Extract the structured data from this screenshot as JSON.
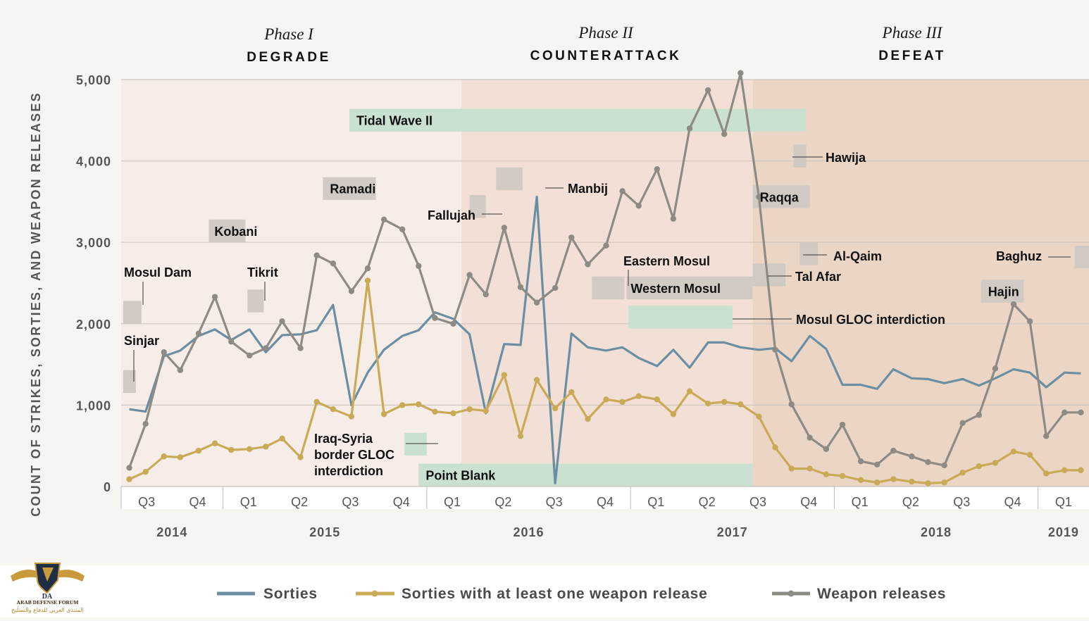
{
  "phases": [
    {
      "name": "Phase I",
      "title": "DEGRADE"
    },
    {
      "name": "Phase II",
      "title": "COUNTERATTACK"
    },
    {
      "name": "Phase III",
      "title": "DEFEAT"
    }
  ],
  "legend": [
    {
      "label": "Sorties",
      "color": "#6b8ea3"
    },
    {
      "label": "Sorties with at least one weapon release",
      "color": "#c9aa56"
    },
    {
      "label": "Weapon releases",
      "color": "#8e8a84"
    }
  ],
  "logo": {
    "line1": "ARAB DEFENSE FORUM",
    "line2": "المنتدى العربي للدفاع والتسليح",
    "initials": "DA"
  },
  "colors": {
    "sorties": "#6b8ea3",
    "sorties_weapon": "#c9aa56",
    "weapon_releases": "#8e8a84",
    "phase1_bg": "#f7ede8",
    "phase2_bg": "#f2e0d6",
    "phase3_bg": "#ebd6c6",
    "green_box": "#c7dfd0",
    "gray_box": "#d0c9c3"
  },
  "chart_data": {
    "type": "line",
    "ylabel": "COUNT OF STRIKES, SORTIES, AND WEAPON RELEASES",
    "ylim": [
      0,
      5000
    ],
    "yticks": [
      0,
      1000,
      2000,
      3000,
      4000,
      5000
    ],
    "ytick_labels": [
      "0",
      "1,000",
      "2,000",
      "3,000",
      "4,000",
      "5,000"
    ],
    "x_range": [
      2014.5,
      2019.25
    ],
    "quarter_labels": [
      {
        "label": "Q3",
        "x": 2014.625
      },
      {
        "label": "Q4",
        "x": 2014.875
      },
      {
        "label": "Q1",
        "x": 2015.125
      },
      {
        "label": "Q2",
        "x": 2015.375
      },
      {
        "label": "Q3",
        "x": 2015.625
      },
      {
        "label": "Q4",
        "x": 2015.875
      },
      {
        "label": "Q1",
        "x": 2016.125
      },
      {
        "label": "Q2",
        "x": 2016.375
      },
      {
        "label": "Q3",
        "x": 2016.625
      },
      {
        "label": "Q4",
        "x": 2016.875
      },
      {
        "label": "Q1",
        "x": 2017.125
      },
      {
        "label": "Q2",
        "x": 2017.375
      },
      {
        "label": "Q3",
        "x": 2017.625
      },
      {
        "label": "Q4",
        "x": 2017.875
      },
      {
        "label": "Q1",
        "x": 2018.125
      },
      {
        "label": "Q2",
        "x": 2018.375
      },
      {
        "label": "Q3",
        "x": 2018.625
      },
      {
        "label": "Q4",
        "x": 2018.875
      },
      {
        "label": "Q1",
        "x": 2019.125
      }
    ],
    "year_labels": [
      {
        "label": "2014",
        "x": 2014.75
      },
      {
        "label": "2015",
        "x": 2015.5
      },
      {
        "label": "2016",
        "x": 2016.5
      },
      {
        "label": "2017",
        "x": 2017.5
      },
      {
        "label": "2018",
        "x": 2018.5
      },
      {
        "label": "2019",
        "x": 2019.125
      }
    ],
    "phase_spans": [
      {
        "from": 2014.5,
        "to": 2016.17
      },
      {
        "from": 2016.17,
        "to": 2017.6
      },
      {
        "from": 2017.6,
        "to": 2019.25
      }
    ],
    "series": [
      {
        "name": "Sorties",
        "x": [
          2014.54,
          2014.62,
          2014.71,
          2014.79,
          2014.88,
          2014.96,
          2015.04,
          2015.13,
          2015.21,
          2015.29,
          2015.38,
          2015.46,
          2015.54,
          2015.63,
          2015.71,
          2015.79,
          2015.88,
          2015.96,
          2016.04,
          2016.13,
          2016.21,
          2016.29,
          2016.38,
          2016.46,
          2016.54,
          2016.63,
          2016.71,
          2016.79,
          2016.88,
          2016.96,
          2017.04,
          2017.13,
          2017.21,
          2017.29,
          2017.38,
          2017.46,
          2017.54,
          2017.63,
          2017.71,
          2017.79,
          2017.88,
          2017.96,
          2018.04,
          2018.13,
          2018.21,
          2018.29,
          2018.38,
          2018.46,
          2018.54,
          2018.63,
          2018.71,
          2018.79,
          2018.88,
          2018.96,
          2019.04,
          2019.13,
          2019.21
        ],
        "values": [
          950,
          920,
          1600,
          1670,
          1850,
          1930,
          1800,
          1930,
          1650,
          1860,
          1870,
          1920,
          2230,
          1000,
          1400,
          1680,
          1850,
          1920,
          2140,
          2060,
          1870,
          900,
          1750,
          1740,
          3560,
          40,
          1880,
          1710,
          1670,
          1710,
          1580,
          1480,
          1680,
          1460,
          1770,
          1770,
          1710,
          1680,
          1700,
          1540,
          1850,
          1690,
          1250,
          1250,
          1200,
          1440,
          1330,
          1320,
          1270,
          1320,
          1240,
          1330,
          1440,
          1400,
          1220,
          1400,
          1390
        ]
      },
      {
        "name": "Sorties with at least one weapon release",
        "x": [
          2014.54,
          2014.62,
          2014.71,
          2014.79,
          2014.88,
          2014.96,
          2015.04,
          2015.13,
          2015.21,
          2015.29,
          2015.38,
          2015.46,
          2015.54,
          2015.63,
          2015.71,
          2015.79,
          2015.88,
          2015.96,
          2016.04,
          2016.13,
          2016.21,
          2016.29,
          2016.38,
          2016.46,
          2016.54,
          2016.63,
          2016.71,
          2016.79,
          2016.88,
          2016.96,
          2017.04,
          2017.13,
          2017.21,
          2017.29,
          2017.38,
          2017.46,
          2017.54,
          2017.63,
          2017.71,
          2017.79,
          2017.88,
          2017.96,
          2018.04,
          2018.13,
          2018.21,
          2018.29,
          2018.38,
          2018.46,
          2018.54,
          2018.63,
          2018.71,
          2018.79,
          2018.88,
          2018.96,
          2019.04,
          2019.13,
          2019.21
        ],
        "values": [
          90,
          180,
          370,
          360,
          440,
          530,
          450,
          460,
          490,
          590,
          360,
          1040,
          950,
          860,
          2530,
          890,
          1000,
          1010,
          920,
          900,
          950,
          930,
          1370,
          620,
          1310,
          960,
          1160,
          830,
          1070,
          1040,
          1110,
          1070,
          890,
          1170,
          1020,
          1040,
          1010,
          860,
          480,
          220,
          220,
          150,
          130,
          80,
          50,
          90,
          60,
          40,
          50,
          170,
          250,
          290,
          430,
          390,
          160,
          200,
          200
        ]
      },
      {
        "name": "Weapon releases",
        "x": [
          2014.54,
          2014.62,
          2014.71,
          2014.79,
          2014.88,
          2014.96,
          2015.04,
          2015.13,
          2015.21,
          2015.29,
          2015.38,
          2015.46,
          2015.54,
          2015.63,
          2015.71,
          2015.79,
          2015.88,
          2015.96,
          2016.04,
          2016.13,
          2016.21,
          2016.29,
          2016.38,
          2016.46,
          2016.54,
          2016.63,
          2016.71,
          2016.79,
          2016.88,
          2016.96,
          2017.04,
          2017.13,
          2017.21,
          2017.29,
          2017.38,
          2017.46,
          2017.54,
          2017.63,
          2017.71,
          2017.79,
          2017.88,
          2017.96,
          2018.04,
          2018.13,
          2018.21,
          2018.29,
          2018.38,
          2018.46,
          2018.54,
          2018.63,
          2018.71,
          2018.79,
          2018.88,
          2018.96,
          2019.04,
          2019.13,
          2019.21
        ],
        "values": [
          230,
          770,
          1650,
          1430,
          1880,
          2330,
          1780,
          1610,
          1700,
          2030,
          1700,
          2840,
          2740,
          2400,
          2680,
          3280,
          3160,
          2710,
          2070,
          2000,
          2600,
          2360,
          3180,
          2450,
          2260,
          2440,
          3060,
          2730,
          2960,
          3630,
          3450,
          3900,
          3290,
          4400,
          4870,
          4330,
          5080,
          3560,
          1680,
          1010,
          600,
          460,
          760,
          310,
          270,
          440,
          370,
          300,
          260,
          780,
          880,
          1450,
          2240,
          2030,
          620,
          910,
          910
        ]
      }
    ],
    "annotations": [
      {
        "label": "Tidal Wave II",
        "kind": "green",
        "from": 2015.62,
        "to": 2017.86,
        "y_top": 4640,
        "y_bot": 4360
      },
      {
        "label": "Mosul GLOC interdiction",
        "kind": "green",
        "from": 2016.99,
        "to": 2017.5,
        "y_top": 2220,
        "y_bot": 1940
      },
      {
        "label": "Point Blank",
        "kind": "green",
        "from": 2015.96,
        "to": 2017.6,
        "y_top": 280,
        "y_bot": 0
      },
      {
        "label": "Iraq-Syria border GLOC interdiction",
        "kind": "green",
        "from": 2015.89,
        "to": 2016.0,
        "y_top": 660,
        "y_bot": 380
      },
      {
        "label": "Kobani",
        "kind": "gray",
        "from": 2014.93,
        "to": 2015.11,
        "y_top": 3280,
        "y_bot": 3000
      },
      {
        "label": "Ramadi",
        "kind": "gray",
        "from": 2015.49,
        "to": 2015.75,
        "y_top": 3800,
        "y_bot": 3520
      },
      {
        "label": "Mosul Dam",
        "kind": "gray",
        "from": 2014.51,
        "to": 2014.6,
        "y_top": 2280,
        "y_bot": 2000
      },
      {
        "label": "Tikrit",
        "kind": "gray",
        "from": 2015.12,
        "to": 2015.2,
        "y_top": 2420,
        "y_bot": 2140
      },
      {
        "label": "Sinjar",
        "kind": "gray",
        "from": 2014.51,
        "to": 2014.55,
        "y_top": 1430,
        "y_bot": 1150
      },
      {
        "label": "Fallujah",
        "kind": "gray",
        "from": 2016.21,
        "to": 2016.29,
        "y_top": 3580,
        "y_bot": 3300
      },
      {
        "label": "Manbij",
        "kind": "gray",
        "from": 2016.34,
        "to": 2016.47,
        "y_top": 3920,
        "y_bot": 3640
      },
      {
        "label": "Eastern Mosul",
        "kind": "gray",
        "from": 2016.81,
        "to": 2016.97,
        "y_top": 2580,
        "y_bot": 2300
      },
      {
        "label": "Western Mosul",
        "kind": "gray",
        "from": 2016.98,
        "to": 2017.6,
        "y_top": 2580,
        "y_bot": 2300
      },
      {
        "label": "Raqqa",
        "kind": "gray",
        "from": 2017.6,
        "to": 2017.88,
        "y_top": 3700,
        "y_bot": 3420
      },
      {
        "label": "Hawija",
        "kind": "gray",
        "from": 2017.8,
        "to": 2017.85,
        "y_top": 4200,
        "y_bot": 3920
      },
      {
        "label": "Al-Qaim",
        "kind": "gray",
        "from": 2017.83,
        "to": 2017.92,
        "y_top": 3000,
        "y_bot": 2720
      },
      {
        "label": "Tal Afar",
        "kind": "gray",
        "from": 2017.6,
        "to": 2017.76,
        "y_top": 2740,
        "y_bot": 2460
      },
      {
        "label": "Hajin",
        "kind": "gray",
        "from": 2018.72,
        "to": 2018.93,
        "y_top": 2540,
        "y_bot": 2260
      },
      {
        "label": "Baghuz",
        "kind": "gray",
        "from": 2019.18,
        "to": 2019.25,
        "y_top": 2960,
        "y_bot": 2680
      }
    ]
  }
}
